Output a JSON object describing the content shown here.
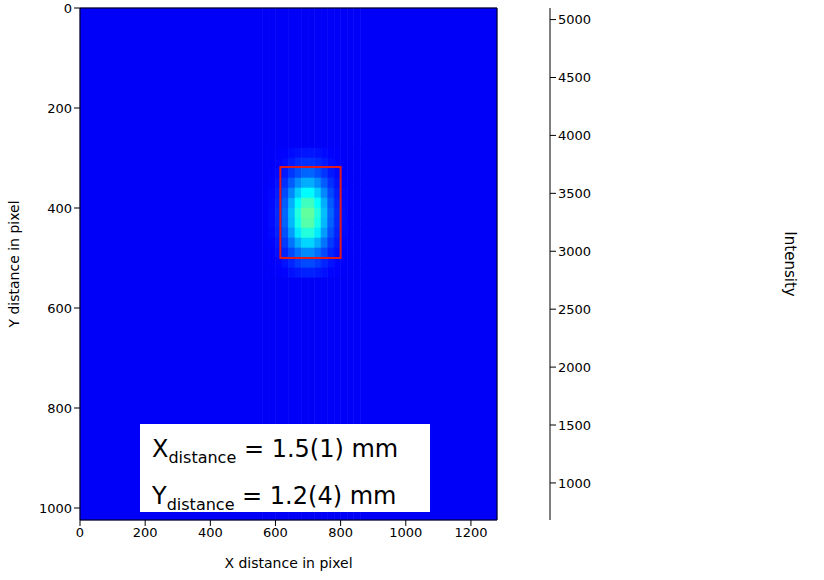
{
  "chart_data": {
    "type": "heatmap",
    "xlabel": "X distance in pixel",
    "ylabel": "Y distance in pixel",
    "xlim": [
      0,
      1280
    ],
    "ylim": [
      1024,
      0
    ],
    "xticks": [
      0,
      200,
      400,
      600,
      800,
      1000,
      1200
    ],
    "yticks": [
      0,
      200,
      400,
      600,
      800,
      1000
    ],
    "color": "jet",
    "x_edges": [
      0,
      560,
      580,
      600,
      620,
      640,
      660,
      680,
      700,
      720,
      740,
      760,
      780,
      800,
      820,
      840,
      860,
      1280
    ],
    "y_edges": [
      0,
      280,
      300,
      320,
      340,
      360,
      380,
      400,
      420,
      440,
      460,
      480,
      500,
      520,
      540,
      1024
    ],
    "cells": [
      [
        1200,
        1200,
        1200,
        1200,
        1200,
        1200,
        1200,
        1200,
        1200,
        1200,
        1200,
        1200,
        1200,
        1200,
        1200,
        1200,
        1200
      ],
      [
        1200,
        1200,
        1210,
        1220,
        1240,
        1270,
        1300,
        1320,
        1320,
        1300,
        1270,
        1240,
        1220,
        1210,
        1200,
        1200,
        1200
      ],
      [
        1200,
        1200,
        1210,
        1240,
        1280,
        1340,
        1410,
        1450,
        1450,
        1410,
        1340,
        1280,
        1240,
        1210,
        1200,
        1200,
        1200
      ],
      [
        1200,
        1210,
        1220,
        1270,
        1340,
        1460,
        1580,
        1670,
        1670,
        1580,
        1460,
        1340,
        1270,
        1220,
        1210,
        1200,
        1200
      ],
      [
        1200,
        1210,
        1240,
        1310,
        1440,
        1630,
        1840,
        1980,
        1980,
        1840,
        1630,
        1440,
        1310,
        1240,
        1210,
        1200,
        1200
      ],
      [
        1200,
        1220,
        1260,
        1360,
        1550,
        1820,
        2120,
        2330,
        2330,
        2120,
        1820,
        1550,
        1360,
        1260,
        1220,
        1200,
        1200
      ],
      [
        1200,
        1220,
        1270,
        1390,
        1630,
        1980,
        2350,
        2610,
        2610,
        2350,
        1980,
        1630,
        1390,
        1270,
        1220,
        1210,
        1200
      ],
      [
        1200,
        1220,
        1280,
        1420,
        1680,
        2060,
        2480,
        2760,
        2760,
        2480,
        2060,
        1680,
        1420,
        1280,
        1220,
        1210,
        1200
      ],
      [
        1200,
        1220,
        1280,
        1410,
        1660,
        2030,
        2430,
        2710,
        2710,
        2430,
        2030,
        1660,
        1410,
        1280,
        1220,
        1210,
        1200
      ],
      [
        1200,
        1220,
        1270,
        1380,
        1590,
        1910,
        2250,
        2490,
        2490,
        2250,
        1910,
        1590,
        1380,
        1270,
        1220,
        1210,
        1200
      ],
      [
        1200,
        1220,
        1250,
        1330,
        1490,
        1730,
        1980,
        2160,
        2160,
        1980,
        1730,
        1490,
        1330,
        1250,
        1220,
        1200,
        1200
      ],
      [
        1200,
        1210,
        1230,
        1290,
        1390,
        1550,
        1710,
        1830,
        1830,
        1710,
        1550,
        1390,
        1290,
        1230,
        1210,
        1200,
        1200
      ],
      [
        1200,
        1210,
        1220,
        1250,
        1310,
        1390,
        1480,
        1550,
        1550,
        1480,
        1390,
        1310,
        1250,
        1220,
        1210,
        1200,
        1200
      ],
      [
        1200,
        1200,
        1210,
        1220,
        1250,
        1300,
        1340,
        1370,
        1370,
        1340,
        1300,
        1250,
        1220,
        1210,
        1200,
        1200,
        1200
      ],
      [
        1200,
        1200,
        1200,
        1200,
        1200,
        1200,
        1200,
        1200,
        1200,
        1200,
        1200,
        1200,
        1200,
        1200,
        1200,
        1200,
        1200
      ]
    ],
    "colorbar": {
      "label": "Intensity",
      "range": [
        680,
        5100
      ],
      "ticks": [
        1000,
        1500,
        2000,
        2500,
        3000,
        3500,
        4000,
        4500,
        5000
      ]
    },
    "roi": {
      "x": [
        615,
        800
      ],
      "y": [
        318,
        500
      ],
      "color": "#e31a1c"
    },
    "annotations": [
      {
        "symbol": "X",
        "subscript": "distance",
        "text": "= 1.5(1) mm"
      },
      {
        "symbol": "Y",
        "subscript": "distance",
        "text": "= 1.2(4) mm"
      }
    ]
  }
}
